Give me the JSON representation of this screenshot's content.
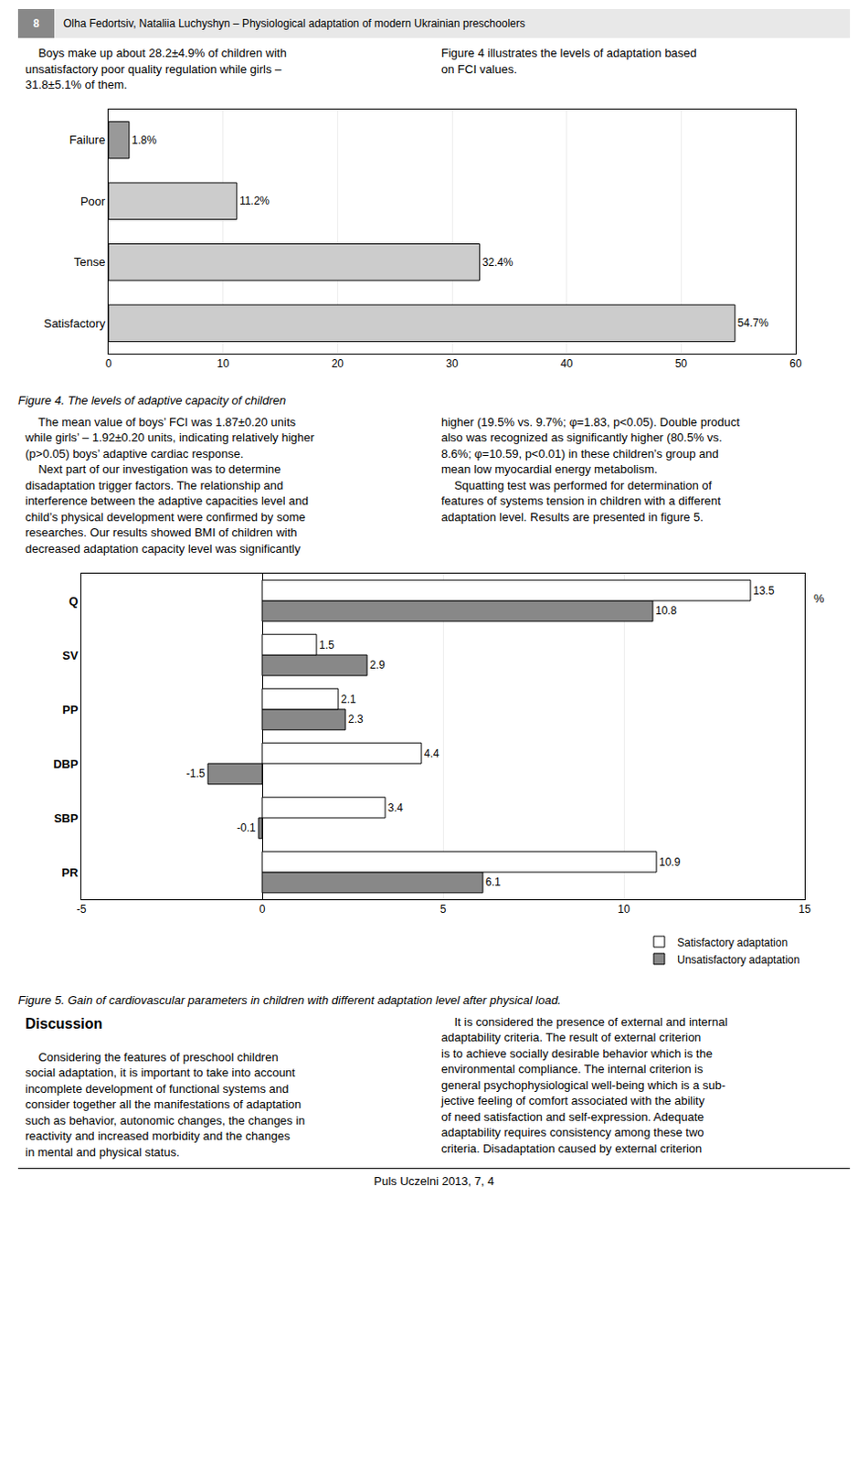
{
  "page_header": [
    "8",
    "Olha Fedortsiv, Nataliia Luchyshyn – Physiological adaptation of modern Ukrainian preschoolers"
  ],
  "text_1": {
    "left": "    Boys make up about 28.2±4.9% of children with\nunsatisfactory poor quality regulation while girls –\n31.8±5.1% of them.",
    "right": "Figure 4 illustrates the levels of adaptation based\non FCI values."
  },
  "text_2": {
    "left": "    The mean value of boys’ FCI was 1.87±0.20 units\nwhile girls’ – 1.92±0.20 units, indicating relatively higher\n(p>0.05) boys’ adaptive cardiac response.\n    Next part of our investigation was to determine\ndisadaptation trigger factors. The relationship and\ninterference between the adaptive capacities level and\nchild’s physical development were confirmed by some\nresearches. Our results showed BMI of children with\ndecreased adaptation capacity level was significantly",
    "right": "higher (19.5% vs. 9.7%; φ=1.83, p<0.05). Double product\nalso was recognized as significantly higher (80.5% vs.\n8.6%; φ=10.59, p<0.01) in these children’s group and\nmean low myocardial energy metabolism.\n    Squatting test was performed for determination of\nfeatures of systems tension in children with a different\nadaptation level. Results are presented in figure 5."
  },
  "text_3": {
    "heading": "Discussion",
    "left": "    Considering the features of preschool children\nsocial adaptation, it is important to take into account\nincomplete development of functional systems and\nconsider together all the manifestations of adaptation\nsuch as behavior, autonomic changes, the changes in\nreactivity and increased morbidity and the changes\nin mental and physical status.",
    "right": "    It is considered the presence of external and internal\nadaptability criteria. The result of external criterion\nis to achieve socially desirable behavior which is the\nenvironmental compliance. The internal criterion is\ngeneral psychophysiological well-being which is a sub-\njective feeling of comfort associated with the ability\nof need satisfaction and self-expression. Adequate\nadaptability requires consistency among these two\ncriteria. Disadaptation caused by external criterion"
  },
  "footer": "Puls Uczelni 2013, 7, 4",
  "chart_data": [
    {
      "type": "bar",
      "orientation": "horizontal",
      "title": "Figure 4. The levels of adaptive capacity of children",
      "categories": [
        "Satisfactory",
        "Tense",
        "Poor",
        "Failure"
      ],
      "values": [
        54.7,
        32.4,
        11.2,
        1.8
      ],
      "value_labels": [
        "54.7%",
        "32.4%",
        "11.2%",
        "1.8%"
      ],
      "data_labels": true,
      "colors": [
        "#cccccc",
        "#cccccc",
        "#cccccc",
        "#999999"
      ],
      "xlim": [
        0,
        60
      ],
      "xticks": [
        0,
        10,
        20,
        30,
        40,
        50,
        60
      ],
      "grid": true
    },
    {
      "type": "bar",
      "orientation": "horizontal",
      "title": "Figure 5. Gain of cardiovascular parameters in children with different adaptation level after physical load.",
      "xlabel": "%",
      "categories": [
        "PR",
        "SBP",
        "DBP",
        "PP",
        "SV",
        "Q"
      ],
      "series": [
        {
          "name": "Satisfactory adaptation",
          "color": "#ffffff",
          "values": [
            10.9,
            3.4,
            4.4,
            2.1,
            1.5,
            13.5
          ]
        },
        {
          "name": "Unsatisfactory adaptation",
          "color": "#888888",
          "values": [
            6.1,
            -0.1,
            -1.5,
            2.3,
            2.9,
            10.8
          ]
        }
      ],
      "data_labels": true,
      "xlim": [
        -5,
        15
      ],
      "xticks": [
        -5,
        0,
        5,
        10,
        15
      ],
      "grid": true,
      "legend": "lower right"
    }
  ]
}
